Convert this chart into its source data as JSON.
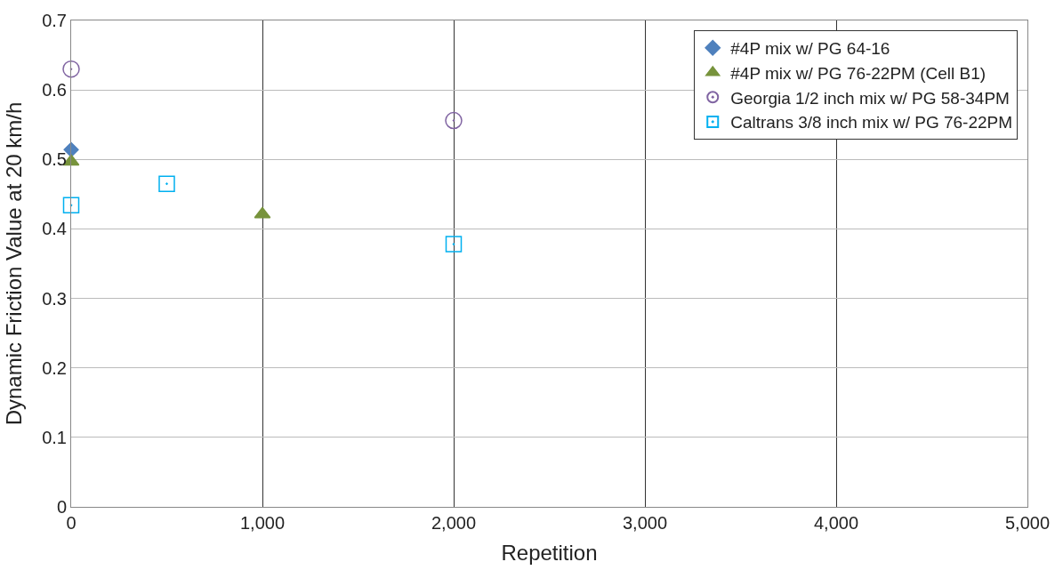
{
  "chart_data": {
    "type": "scatter",
    "xlabel": "Repetition",
    "ylabel": "Dynamic Friction Value at 20 km/h",
    "xlim": [
      0,
      5000
    ],
    "xticks": [
      {
        "value": 0,
        "label": "0"
      },
      {
        "value": 1000,
        "label": "1,000"
      },
      {
        "value": 2000,
        "label": "2,000"
      },
      {
        "value": 3000,
        "label": "3,000"
      },
      {
        "value": 4000,
        "label": "4,000"
      },
      {
        "value": 5000,
        "label": "5,000"
      }
    ],
    "ylim": [
      0,
      0.7
    ],
    "yticks": [
      0,
      0.1,
      0.2,
      0.3,
      0.4,
      0.5,
      0.6,
      0.7
    ],
    "grid": true,
    "legend": "top right",
    "series": [
      {
        "name": "#4P mix w/ PG 64-16",
        "color": "#4f81bd",
        "marker": "diamond",
        "x": [
          0
        ],
        "values": [
          0.514
        ]
      },
      {
        "name": "#4P mix w/ PG 76-22PM (Cell B1)",
        "color": "#77933c",
        "marker": "triangle",
        "x": [
          0,
          1000
        ],
        "values": [
          0.497,
          0.421
        ]
      },
      {
        "name": "Georgia 1/2 inch mix w/ PG 58-34PM",
        "color": "#8064a2",
        "marker": "circle-open",
        "x": [
          0,
          2000
        ],
        "values": [
          0.63,
          0.556
        ]
      },
      {
        "name": "Caltrans 3/8 inch mix w/ PG 76-22PM",
        "color": "#00b0f0",
        "marker": "square-open",
        "x": [
          0,
          500,
          2000
        ],
        "values": [
          0.434,
          0.465,
          0.378
        ]
      }
    ]
  }
}
